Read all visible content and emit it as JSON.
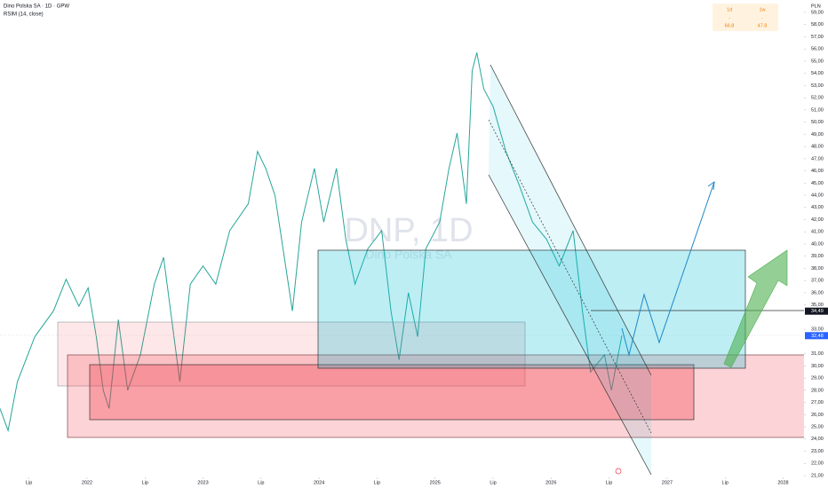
{
  "header": {
    "title": "Dino Polska SA · 1D · GPW",
    "indicator": "RSIM (14, close)"
  },
  "watermark": {
    "symbol": "DNP, 1D",
    "name": "Dino Polska SA"
  },
  "performance": [
    {
      "period": "1d",
      "dash": "-",
      "value": "66.8"
    },
    {
      "period": "1w",
      "dash": "-",
      "value": "47.8"
    }
  ],
  "currency": "PLN",
  "chart_data": {
    "type": "line",
    "color": "#26a69a",
    "x": [
      2021.25,
      2021.32,
      2021.4,
      2021.55,
      2021.71,
      2021.82,
      2021.93,
      2022.01,
      2022.08,
      2022.14,
      2022.19,
      2022.27,
      2022.35,
      2022.46,
      2022.58,
      2022.66,
      2022.73,
      2022.8,
      2022.89,
      2023.0,
      2023.11,
      2023.23,
      2023.39,
      2023.47,
      2023.54,
      2023.62,
      2023.69,
      2023.77,
      2023.85,
      2023.96,
      2024.04,
      2024.15,
      2024.23,
      2024.31,
      2024.42,
      2024.54,
      2024.62,
      2024.69,
      2024.77,
      2024.85,
      2024.92,
      2025.04,
      2025.12,
      2025.19,
      2025.27,
      2025.32,
      2025.36,
      2025.42,
      2025.5,
      2025.61,
      2025.73,
      2025.84,
      2025.96,
      2026.07,
      2026.19,
      2026.27,
      2026.34,
      2026.46,
      2026.52,
      2026.61
    ],
    "values": [
      26.5,
      24.7,
      28.7,
      32.4,
      34.5,
      37.1,
      34.9,
      36.4,
      32.4,
      28.0,
      26.5,
      33.8,
      28.0,
      30.9,
      36.7,
      38.9,
      33.8,
      28.7,
      36.7,
      38.2,
      36.7,
      41.1,
      43.3,
      47.6,
      46.2,
      44.0,
      39.6,
      34.5,
      41.8,
      46.2,
      41.8,
      46.2,
      40.4,
      36.7,
      39.6,
      41.1,
      34.5,
      30.5,
      36.0,
      32.4,
      39.6,
      41.8,
      46.2,
      49.1,
      43.3,
      54.2,
      55.7,
      52.7,
      51.3,
      47.6,
      44.7,
      41.8,
      40.4,
      38.2,
      41.1,
      34.5,
      29.5,
      30.9,
      28.0,
      32.5
    ],
    "xlim": [
      2021.25,
      2028.18
    ],
    "ylim": [
      21,
      59
    ],
    "xticks": [
      {
        "value": 2021.5,
        "label": "Lip"
      },
      2022,
      {
        "value": 2022.5,
        "label": "Lip"
      },
      2023,
      {
        "value": 2023.5,
        "label": "Lip"
      },
      2024,
      {
        "value": 2024.5,
        "label": "Lip"
      },
      2025,
      {
        "value": 2025.5,
        "label": "Lip"
      },
      2026,
      {
        "value": 2026.5,
        "label": "Lip"
      },
      2027,
      {
        "value": 2027.5,
        "label": "Lip"
      },
      2028
    ],
    "yticks": [
      {
        "value": 21,
        "label": "21,00"
      },
      {
        "value": 22,
        "label": "22,00"
      },
      {
        "value": 23,
        "label": "23,00"
      },
      {
        "value": 24,
        "label": "24,00"
      },
      {
        "value": 25,
        "label": "25,00"
      },
      {
        "value": 26,
        "label": "26,00"
      },
      {
        "value": 27,
        "label": "27,00"
      },
      {
        "value": 28,
        "label": "28,00"
      },
      {
        "value": 29,
        "label": "29,00"
      },
      {
        "value": 30,
        "label": "30,00"
      },
      {
        "value": 31,
        "label": "31,00"
      },
      {
        "value": 33,
        "label": "33,00"
      },
      {
        "value": 35,
        "label": "35,00"
      },
      {
        "value": 36,
        "label": "36,00"
      },
      {
        "value": 37,
        "label": "37,00"
      },
      {
        "value": 38,
        "label": "38,00"
      },
      {
        "value": 39,
        "label": "39,00"
      },
      {
        "value": 40,
        "label": "40,00"
      },
      {
        "value": 41,
        "label": "41,00"
      },
      {
        "value": 42,
        "label": "42,00"
      },
      {
        "value": 43,
        "label": "43,00"
      },
      {
        "value": 44,
        "label": "44,00"
      },
      {
        "value": 45,
        "label": "45,00"
      },
      {
        "value": 46,
        "label": "46,00"
      },
      {
        "value": 47,
        "label": "47,00"
      },
      {
        "value": 48,
        "label": "48,00"
      },
      {
        "value": 49,
        "label": "49,00"
      },
      {
        "value": 50,
        "label": "50,00"
      },
      {
        "value": 51,
        "label": "51,00"
      },
      {
        "value": 52,
        "label": "52,00"
      },
      {
        "value": 53,
        "label": "53,00"
      },
      {
        "value": 54,
        "label": "54,00"
      },
      {
        "value": 55,
        "label": "55,00"
      },
      {
        "value": 56,
        "label": "56,00"
      },
      {
        "value": 57,
        "label": "57,00"
      },
      {
        "value": 58,
        "label": "58,00"
      },
      {
        "value": 59,
        "label": "59,00"
      }
    ],
    "price_tags": [
      {
        "value": 34.49,
        "label": "34,49",
        "color": "#131722"
      },
      {
        "value": 32.48,
        "label": "32,48",
        "color": "#2962ff"
      }
    ]
  }
}
